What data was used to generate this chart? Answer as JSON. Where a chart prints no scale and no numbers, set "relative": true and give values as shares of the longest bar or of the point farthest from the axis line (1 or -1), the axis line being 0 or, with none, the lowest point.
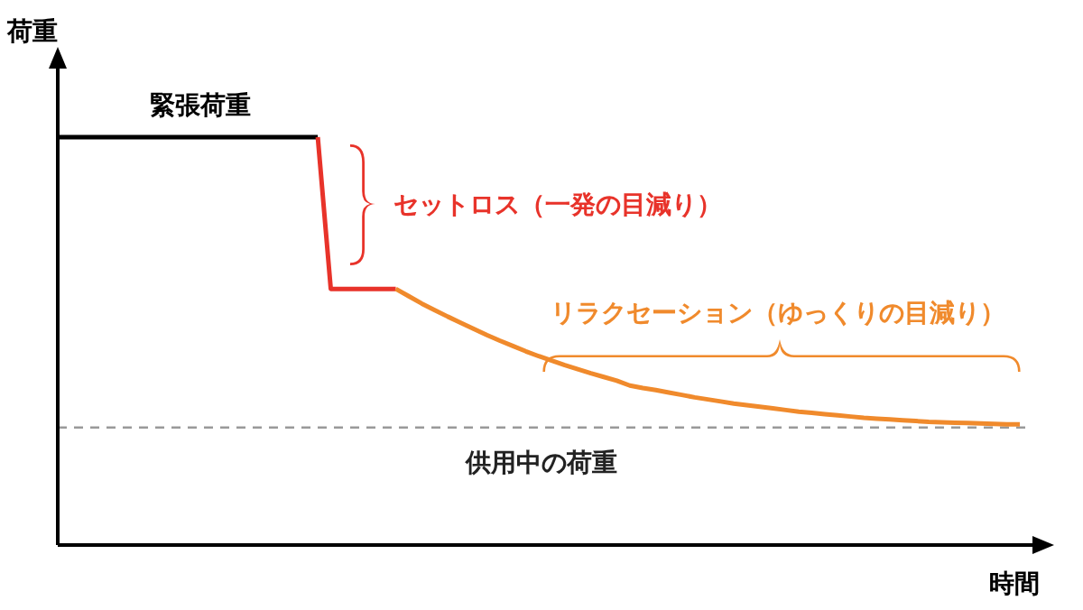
{
  "chart_data": {
    "type": "line",
    "relative": true,
    "xlabel": "時間",
    "ylabel": "荷重",
    "marker": "none",
    "line_style": "solid",
    "categories": [
      null,
      null,
      null,
      null,
      null,
      null,
      null,
      null,
      null,
      null,
      null,
      null,
      null,
      null,
      null,
      null,
      null,
      null,
      null,
      null,
      null,
      null,
      null,
      null,
      null,
      null,
      null,
      null,
      null,
      null,
      null,
      null,
      null,
      null,
      null,
      null,
      null,
      null,
      null,
      null,
      null,
      null,
      null,
      null,
      null,
      null,
      null,
      null,
      null,
      null,
      null,
      null,
      null,
      null,
      null,
      null,
      null,
      null,
      null,
      null,
      null,
      null,
      null,
      null,
      null,
      null,
      null,
      null,
      null,
      null,
      null,
      null,
      null,
      null,
      null
    ],
    "series": [
      {
        "color": "#000000",
        "values": [
          1,
          1,
          1,
          1,
          1,
          1,
          1,
          1,
          1,
          1,
          1,
          1,
          1,
          1,
          1,
          1,
          1,
          1,
          1,
          1,
          1,
          null,
          null,
          null,
          null,
          null,
          null,
          null,
          null,
          null,
          null,
          null,
          null,
          null,
          null,
          null,
          null,
          null,
          null,
          null,
          null,
          null,
          null,
          null,
          null,
          null,
          null,
          null,
          null,
          null,
          null,
          null,
          null,
          null,
          null,
          null,
          null,
          null,
          null,
          null,
          null,
          null,
          null,
          null,
          null,
          null,
          null,
          null,
          null,
          null,
          null,
          null,
          null,
          null,
          null
        ]
      },
      {
        "color": "#e8332a",
        "values": [
          null,
          null,
          null,
          null,
          null,
          null,
          null,
          null,
          null,
          null,
          null,
          null,
          null,
          null,
          null,
          null,
          null,
          null,
          null,
          null,
          1,
          0.628,
          0.628,
          0.628,
          0.628,
          0.628,
          0.628,
          null,
          null,
          null,
          null,
          null,
          null,
          null,
          null,
          null,
          null,
          null,
          null,
          null,
          null,
          null,
          null,
          null,
          null,
          null,
          null,
          null,
          null,
          null,
          null,
          null,
          null,
          null,
          null,
          null,
          null,
          null,
          null,
          null,
          null,
          null,
          null,
          null,
          null,
          null,
          null,
          null,
          null,
          null,
          null,
          null,
          null,
          null,
          null
        ]
      },
      {
        "color": "#f08a2c",
        "values": [
          null,
          null,
          null,
          null,
          null,
          null,
          null,
          null,
          null,
          null,
          null,
          null,
          null,
          null,
          null,
          null,
          null,
          null,
          null,
          null,
          null,
          null,
          null,
          null,
          null,
          null,
          0.628,
          0.61,
          0.592,
          0.576,
          0.56,
          0.545,
          0.53,
          0.515,
          0.501,
          0.488,
          0.475,
          0.463,
          0.452,
          0.441,
          0.431,
          0.421,
          0.412,
          0.403,
          0.391,
          0.385,
          0.38,
          0.374,
          0.368,
          0.362,
          0.357,
          0.352,
          0.347,
          0.343,
          0.339,
          0.335,
          0.331,
          0.327,
          0.324,
          0.321,
          0.318,
          0.315,
          0.312,
          0.31,
          0.308,
          0.306,
          0.304,
          0.302,
          0.301,
          0.3,
          0.299,
          0.298,
          0.297,
          0.296,
          0.296
        ]
      }
    ],
    "ref_lines": [
      {
        "axis": "y",
        "value": 0.288,
        "label": "供用中の荷重",
        "color": "#999999",
        "line_style": "dashed"
      }
    ],
    "annotations": [
      "緊張荷重",
      "セットロス（一発の目減り）",
      "リラクセーション（ゆっくりの目減り）"
    ]
  }
}
